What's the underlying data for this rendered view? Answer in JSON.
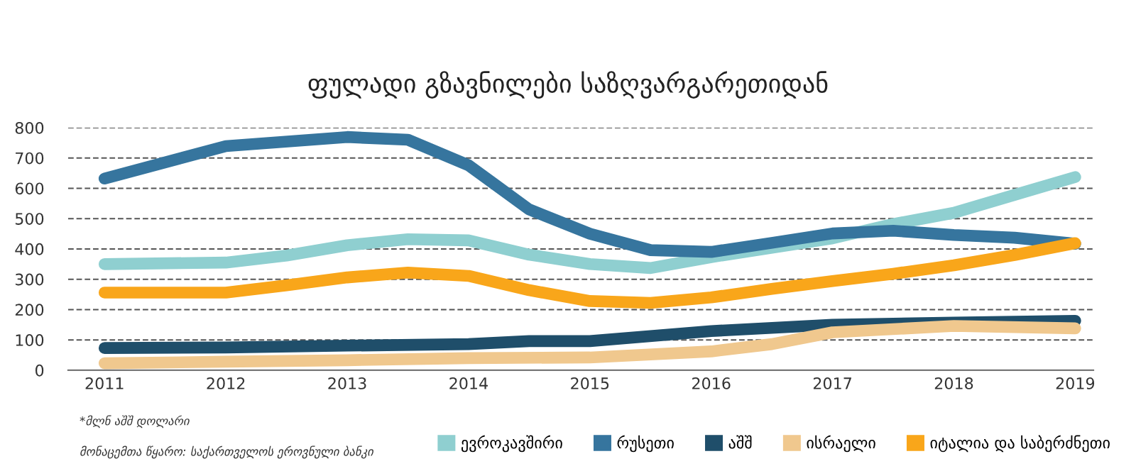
{
  "chart_data": {
    "type": "line",
    "title": "ფულადი გზავნილები საზღვარგარეთიდან",
    "xlim": [
      2010.7,
      2019.15
    ],
    "xticks": [
      2011,
      2012,
      2013,
      2014,
      2015,
      2016,
      2017,
      2018,
      2019
    ],
    "ylim": [
      0,
      800
    ],
    "yticks": [
      0,
      100,
      200,
      300,
      400,
      500,
      600,
      700,
      800
    ],
    "grid": "y",
    "legend": "bottom",
    "marker": "none",
    "line_style": "solid",
    "annotations": [
      "*მლნ აშშ დოლარი",
      "მონაცემთა წყარო: საქართველოს ეროვნული ბანკი"
    ],
    "series": [
      {
        "name": "ევროკავშირი",
        "color": "#8fcfd0",
        "x": [
          2011,
          2012,
          2012.5,
          2013,
          2013.5,
          2014,
          2014.5,
          2015,
          2015.5,
          2016,
          2016.5,
          2017,
          2017.5,
          2018,
          2018.5,
          2019
        ],
        "values": [
          350,
          355,
          378,
          412,
          432,
          428,
          381,
          350,
          337,
          373,
          404,
          435,
          482,
          519,
          578,
          637
        ]
      },
      {
        "name": "რუსეთი",
        "color": "#36759e",
        "x": [
          2011,
          2012,
          2013,
          2013.5,
          2014,
          2014.5,
          2015,
          2015.5,
          2016,
          2016.5,
          2017,
          2017.5,
          2018,
          2018.5,
          2019
        ],
        "values": [
          632,
          739,
          769,
          760,
          676,
          530,
          450,
          396,
          390,
          420,
          451,
          460,
          446,
          437,
          417
        ]
      },
      {
        "name": "აშშ",
        "color": "#1f4e6a",
        "x": [
          2011,
          2012,
          2013,
          2014,
          2014.5,
          2015,
          2016,
          2017,
          2018,
          2019
        ],
        "values": [
          73,
          75,
          81,
          86,
          96,
          96,
          129,
          150,
          157,
          163
        ]
      },
      {
        "name": "ისრაელი",
        "color": "#f0c88e",
        "x": [
          2011,
          2012,
          2013,
          2014,
          2015,
          2016,
          2016.5,
          2017,
          2018,
          2019
        ],
        "values": [
          23,
          28,
          33,
          40,
          42,
          62,
          86,
          125,
          146,
          138
        ]
      },
      {
        "name": "იტალია და საბერძნეთი",
        "color": "#f9a61a",
        "x": [
          2011,
          2012,
          2012.5,
          2013,
          2013.5,
          2014,
          2014.5,
          2015,
          2015.5,
          2016,
          2016.5,
          2017,
          2017.5,
          2018,
          2018.5,
          2019
        ],
        "values": [
          256,
          256,
          280,
          306,
          322,
          311,
          264,
          228,
          222,
          240,
          268,
          294,
          318,
          346,
          380,
          419
        ]
      }
    ]
  }
}
